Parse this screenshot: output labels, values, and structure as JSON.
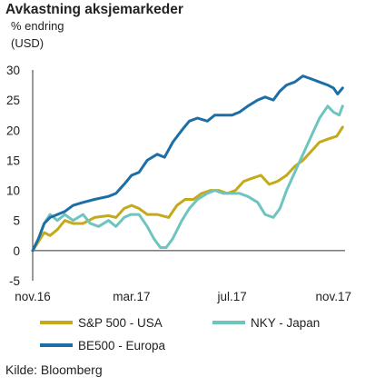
{
  "header": {
    "title": "Avkastning aksjemarkeder",
    "subtitle_1": "% endring",
    "subtitle_2": "(USD)"
  },
  "source": "Kilde: Bloomberg",
  "chart_data": {
    "type": "line",
    "title": "Avkastning aksjemarkeder",
    "ylabel": "% endring (USD)",
    "ylim": [
      -5,
      30
    ],
    "yticks": [
      -5,
      0,
      5,
      10,
      15,
      20,
      25,
      30
    ],
    "ytick_labels": [
      "-5",
      "0",
      "5",
      "10",
      "15",
      "20",
      "25",
      "30"
    ],
    "xlim": [
      "2016-11-01",
      "2017-11-15"
    ],
    "xticks": [
      {
        "date": "2016-11-01",
        "label": "nov.16"
      },
      {
        "date": "2017-03-01",
        "label": "mar.17"
      },
      {
        "date": "2017-07-01",
        "label": "jul.17"
      },
      {
        "date": "2017-11-01",
        "label": "nov.17"
      }
    ],
    "grid": false,
    "legend_position": "bottom",
    "series": [
      {
        "name": "S&P 500 - USA",
        "color": "#c4aa1a",
        "points": [
          [
            "2016-11-01",
            0
          ],
          [
            "2016-11-08",
            1.5
          ],
          [
            "2016-11-15",
            3
          ],
          [
            "2016-11-22",
            2.5
          ],
          [
            "2016-12-01",
            3.5
          ],
          [
            "2016-12-10",
            5
          ],
          [
            "2016-12-20",
            4.5
          ],
          [
            "2017-01-01",
            4.5
          ],
          [
            "2017-01-15",
            5.5
          ],
          [
            "2017-02-01",
            5.8
          ],
          [
            "2017-02-10",
            5.5
          ],
          [
            "2017-02-20",
            7
          ],
          [
            "2017-03-01",
            7.5
          ],
          [
            "2017-03-10",
            7
          ],
          [
            "2017-03-20",
            6
          ],
          [
            "2017-04-01",
            6
          ],
          [
            "2017-04-15",
            5.5
          ],
          [
            "2017-04-25",
            7.5
          ],
          [
            "2017-05-05",
            8.5
          ],
          [
            "2017-05-15",
            8.5
          ],
          [
            "2017-05-25",
            9.5
          ],
          [
            "2017-06-05",
            10
          ],
          [
            "2017-06-15",
            10
          ],
          [
            "2017-06-25",
            9.5
          ],
          [
            "2017-07-05",
            10
          ],
          [
            "2017-07-15",
            11.5
          ],
          [
            "2017-07-25",
            12
          ],
          [
            "2017-08-05",
            12.5
          ],
          [
            "2017-08-15",
            11
          ],
          [
            "2017-08-25",
            11.5
          ],
          [
            "2017-09-05",
            12.5
          ],
          [
            "2017-09-15",
            14
          ],
          [
            "2017-09-25",
            15
          ],
          [
            "2017-10-05",
            16.5
          ],
          [
            "2017-10-15",
            18
          ],
          [
            "2017-10-25",
            18.5
          ],
          [
            "2017-11-05",
            19
          ],
          [
            "2017-11-12",
            20.5
          ]
        ]
      },
      {
        "name": "NKY - Japan",
        "color": "#6ec4be",
        "points": [
          [
            "2016-11-01",
            0
          ],
          [
            "2016-11-08",
            2
          ],
          [
            "2016-11-15",
            4.5
          ],
          [
            "2016-11-22",
            6
          ],
          [
            "2016-12-01",
            5
          ],
          [
            "2016-12-10",
            6
          ],
          [
            "2016-12-20",
            5
          ],
          [
            "2017-01-01",
            6
          ],
          [
            "2017-01-10",
            4.5
          ],
          [
            "2017-01-20",
            4
          ],
          [
            "2017-02-01",
            5
          ],
          [
            "2017-02-10",
            4
          ],
          [
            "2017-02-20",
            5.5
          ],
          [
            "2017-02-28",
            6
          ],
          [
            "2017-03-10",
            6
          ],
          [
            "2017-03-20",
            4
          ],
          [
            "2017-03-28",
            2
          ],
          [
            "2017-04-05",
            0.5
          ],
          [
            "2017-04-12",
            0.5
          ],
          [
            "2017-04-20",
            2
          ],
          [
            "2017-05-01",
            5
          ],
          [
            "2017-05-10",
            7
          ],
          [
            "2017-05-20",
            8.5
          ],
          [
            "2017-06-01",
            9.5
          ],
          [
            "2017-06-10",
            10
          ],
          [
            "2017-06-20",
            9.5
          ],
          [
            "2017-07-01",
            9.5
          ],
          [
            "2017-07-10",
            9.5
          ],
          [
            "2017-07-20",
            9
          ],
          [
            "2017-08-01",
            8
          ],
          [
            "2017-08-10",
            6
          ],
          [
            "2017-08-20",
            5.5
          ],
          [
            "2017-08-28",
            7
          ],
          [
            "2017-09-05",
            10
          ],
          [
            "2017-09-15",
            13
          ],
          [
            "2017-09-25",
            16
          ],
          [
            "2017-10-05",
            19
          ],
          [
            "2017-10-15",
            22
          ],
          [
            "2017-10-25",
            24
          ],
          [
            "2017-11-01",
            23
          ],
          [
            "2017-11-08",
            22.5
          ],
          [
            "2017-11-12",
            24
          ]
        ]
      },
      {
        "name": "BE500 - Europa",
        "color": "#1c6fa6",
        "points": [
          [
            "2016-11-01",
            0
          ],
          [
            "2016-11-08",
            2
          ],
          [
            "2016-11-15",
            4.5
          ],
          [
            "2016-11-22",
            5.5
          ],
          [
            "2016-12-01",
            6
          ],
          [
            "2016-12-10",
            6.5
          ],
          [
            "2016-12-20",
            7.5
          ],
          [
            "2017-01-01",
            8
          ],
          [
            "2017-01-15",
            8.5
          ],
          [
            "2017-02-01",
            9
          ],
          [
            "2017-02-10",
            9.5
          ],
          [
            "2017-02-20",
            11
          ],
          [
            "2017-03-01",
            12.5
          ],
          [
            "2017-03-10",
            13
          ],
          [
            "2017-03-20",
            15
          ],
          [
            "2017-04-01",
            16
          ],
          [
            "2017-04-10",
            15.5
          ],
          [
            "2017-04-20",
            18
          ],
          [
            "2017-05-01",
            20
          ],
          [
            "2017-05-10",
            21.5
          ],
          [
            "2017-05-20",
            22
          ],
          [
            "2017-06-01",
            21.5
          ],
          [
            "2017-06-10",
            22.5
          ],
          [
            "2017-06-20",
            22.5
          ],
          [
            "2017-07-01",
            22.5
          ],
          [
            "2017-07-10",
            23
          ],
          [
            "2017-07-20",
            24
          ],
          [
            "2017-08-01",
            25
          ],
          [
            "2017-08-10",
            25.5
          ],
          [
            "2017-08-20",
            25
          ],
          [
            "2017-08-28",
            26.5
          ],
          [
            "2017-09-05",
            27.5
          ],
          [
            "2017-09-15",
            28
          ],
          [
            "2017-09-25",
            29
          ],
          [
            "2017-10-05",
            28.5
          ],
          [
            "2017-10-15",
            28
          ],
          [
            "2017-10-25",
            27.5
          ],
          [
            "2017-11-01",
            27
          ],
          [
            "2017-11-06",
            26
          ],
          [
            "2017-11-12",
            27
          ]
        ]
      }
    ]
  }
}
